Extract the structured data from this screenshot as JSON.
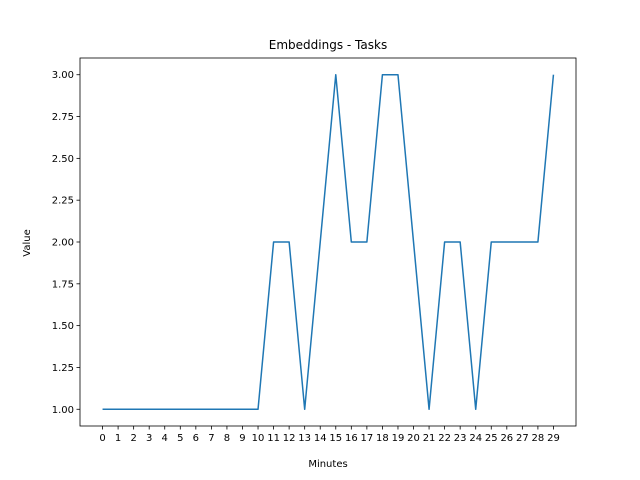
{
  "chart_data": {
    "type": "line",
    "title": "Embeddings - Tasks",
    "xlabel": "Minutes",
    "ylabel": "Value",
    "x": [
      0,
      1,
      2,
      3,
      4,
      5,
      6,
      7,
      8,
      9,
      10,
      11,
      12,
      13,
      14,
      15,
      16,
      17,
      18,
      19,
      20,
      21,
      22,
      23,
      24,
      25,
      26,
      27,
      28,
      29
    ],
    "series": [
      {
        "values": [
          1,
          1,
          1,
          1,
          1,
          1,
          1,
          1,
          1,
          1,
          1,
          2,
          2,
          1,
          2,
          3,
          2,
          2,
          3,
          3,
          2,
          1,
          2,
          2,
          1,
          2,
          2,
          2,
          2,
          3
        ],
        "color": "#1f77b4"
      }
    ],
    "xticks": [
      "0",
      "1",
      "2",
      "3",
      "4",
      "5",
      "6",
      "7",
      "8",
      "9",
      "10",
      "11",
      "12",
      "13",
      "14",
      "15",
      "16",
      "17",
      "18",
      "19",
      "20",
      "21",
      "22",
      "23",
      "24",
      "25",
      "26",
      "27",
      "28",
      "29"
    ],
    "yticks": [
      "1.00",
      "1.25",
      "1.50",
      "1.75",
      "2.00",
      "2.25",
      "2.50",
      "2.75",
      "3.00"
    ],
    "ylim": [
      0.9,
      3.1
    ],
    "xlim": [
      -1.45,
      30.45
    ],
    "grid": false,
    "legend": false
  }
}
